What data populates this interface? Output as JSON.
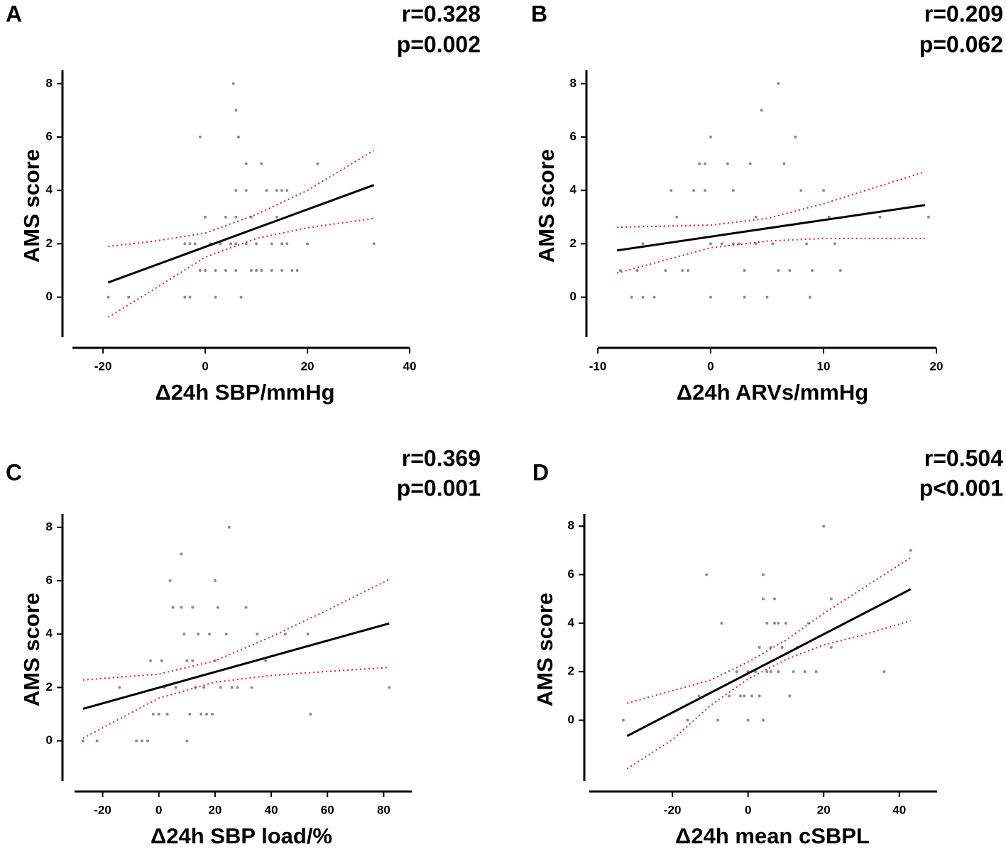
{
  "chart_data": [
    {
      "type": "scatter",
      "panel": "A",
      "annotations": [
        "r=0.328",
        "p=0.002"
      ],
      "xlabel": "Δ24h SBP/mmHg",
      "ylabel": "AMS score",
      "xlim": [
        -26,
        40
      ],
      "ylim": [
        -1.5,
        8.5
      ],
      "xticks": [
        -20,
        0,
        20,
        40
      ],
      "yticks": [
        0,
        2,
        4,
        6,
        8
      ],
      "points": {
        "color": "#8c8c8c",
        "x": [
          -19,
          -15,
          -4,
          -3,
          2,
          7,
          -1,
          0,
          -2,
          -4,
          -3,
          1,
          3,
          5,
          6,
          8,
          10,
          13,
          15,
          16,
          20,
          -1,
          0,
          2,
          4,
          6,
          9,
          11,
          13,
          17,
          18,
          4,
          6,
          9,
          14,
          6,
          8,
          12,
          14,
          15,
          16,
          22,
          8,
          11,
          6,
          5.5,
          6.5,
          33,
          10,
          15
        ],
        "y": [
          0,
          0,
          0,
          0,
          0,
          0,
          6,
          3,
          2,
          2,
          2,
          2,
          2,
          2,
          2,
          2,
          2,
          2,
          2,
          2,
          2,
          1,
          1,
          1,
          1,
          1,
          1,
          1,
          1,
          1,
          1,
          3,
          3,
          3,
          3,
          4,
          4,
          4,
          4,
          4,
          4,
          5,
          5,
          5,
          7,
          8,
          6,
          2,
          1,
          1
        ]
      },
      "fit": {
        "color": "#000000",
        "x": [
          -19,
          33
        ],
        "y": [
          0.55,
          4.2
        ]
      },
      "ci_upper": {
        "color": "#e02020",
        "x": [
          -19,
          -10,
          0,
          10,
          20,
          33
        ],
        "y": [
          1.9,
          2.1,
          2.4,
          3.1,
          4.0,
          5.5
        ]
      },
      "ci_lower": {
        "color": "#e02020",
        "x": [
          -19,
          -10,
          0,
          10,
          20,
          33
        ],
        "y": [
          -0.75,
          0.3,
          1.5,
          2.2,
          2.6,
          2.95
        ]
      }
    },
    {
      "type": "scatter",
      "panel": "B",
      "annotations": [
        "r=0.209",
        "p=0.062"
      ],
      "xlabel": "Δ24h ARVs/mmHg",
      "ylabel": "AMS score",
      "xlim": [
        -10,
        20
      ],
      "ylim": [
        -1.5,
        8.5
      ],
      "xticks": [
        -10,
        0,
        10,
        20
      ],
      "yticks": [
        0,
        2,
        4,
        6,
        8
      ],
      "points": {
        "color": "#8c8c8c",
        "x": [
          -8,
          -7,
          -6,
          -5,
          -6.5,
          -6,
          -4,
          -3.5,
          -3,
          -2.5,
          -2,
          -1.5,
          -1,
          -0.5,
          0,
          0,
          0,
          -0.5,
          1,
          1.5,
          2,
          2.5,
          3,
          3,
          3.5,
          4,
          4,
          4.5,
          5,
          5.5,
          6,
          6.5,
          7,
          7.5,
          8,
          8.5,
          8.8,
          9,
          10,
          10.5,
          11,
          11.5,
          15,
          19.3,
          6,
          2
        ],
        "y": [
          1,
          0,
          0,
          0,
          1,
          2,
          1,
          4,
          3,
          1,
          1,
          4,
          5,
          4,
          2,
          0,
          6,
          5,
          2,
          5,
          4,
          2,
          1,
          0,
          5,
          2,
          3,
          7,
          0,
          2,
          8,
          5,
          1,
          6,
          4,
          2,
          0,
          1,
          4,
          3,
          2,
          1,
          3,
          3,
          1,
          2
        ]
      },
      "fit": {
        "color": "#000000",
        "x": [
          -8.3,
          19
        ],
        "y": [
          1.75,
          3.45
        ]
      },
      "ci_upper": {
        "color": "#e02020",
        "x": [
          -8.3,
          0,
          5,
          10,
          19
        ],
        "y": [
          2.62,
          2.7,
          2.95,
          3.5,
          4.7
        ]
      },
      "ci_lower": {
        "color": "#e02020",
        "x": [
          -8.3,
          0,
          5,
          10,
          19
        ],
        "y": [
          0.9,
          1.85,
          2.1,
          2.2,
          2.2
        ]
      }
    },
    {
      "type": "scatter",
      "panel": "C",
      "annotations": [
        "r=0.369",
        "p=0.001"
      ],
      "xlabel": "Δ24h SBP load/%",
      "ylabel": "AMS score",
      "xlim": [
        -30,
        90
      ],
      "ylim": [
        -1.5,
        8.5
      ],
      "xticks": [
        -20,
        0,
        20,
        40,
        60,
        80
      ],
      "yticks": [
        0,
        2,
        4,
        6,
        8
      ],
      "points": {
        "color": "#8c8c8c",
        "x": [
          -27,
          -22,
          -14,
          -8,
          -6,
          -4,
          -2,
          -3,
          0,
          1,
          2,
          3,
          4,
          5,
          6,
          8,
          8,
          9,
          10,
          11,
          12,
          12,
          13,
          14,
          15,
          16,
          18,
          20,
          20,
          21,
          22,
          24,
          25,
          26,
          28,
          31,
          33,
          35,
          38,
          45,
          53,
          54,
          82,
          17,
          19,
          10
        ],
        "y": [
          0,
          0,
          2,
          0,
          0,
          0,
          1,
          3,
          1,
          3,
          2,
          1,
          6,
          5,
          2,
          5,
          7,
          4,
          0,
          1,
          3,
          5,
          2,
          4,
          1,
          2,
          4,
          6,
          3,
          5,
          2,
          4,
          8,
          2,
          2,
          5,
          2,
          4,
          3,
          4,
          4,
          1,
          2,
          1,
          1,
          3
        ]
      },
      "fit": {
        "color": "#000000",
        "x": [
          -27,
          82
        ],
        "y": [
          1.2,
          4.4
        ]
      },
      "ci_upper": {
        "color": "#e02020",
        "x": [
          -27,
          0,
          20,
          40,
          60,
          82
        ],
        "y": [
          2.28,
          2.5,
          3.0,
          3.9,
          4.9,
          6.05
        ]
      },
      "ci_lower": {
        "color": "#e02020",
        "x": [
          -27,
          0,
          20,
          40,
          60,
          82
        ],
        "y": [
          0.1,
          1.6,
          2.2,
          2.45,
          2.6,
          2.75
        ]
      }
    },
    {
      "type": "scatter",
      "panel": "D",
      "annotations": [
        "r=0.504",
        "p<0.001"
      ],
      "xlabel": "Δ24h mean cSBPL",
      "ylabel": "AMS score",
      "xlim": [
        -42,
        50
      ],
      "ylim": [
        -2.5,
        8.5
      ],
      "xticks": [
        -20,
        0,
        20,
        40
      ],
      "yticks": [
        0,
        2,
        4,
        6,
        8
      ],
      "points": {
        "color": "#8c8c8c",
        "x": [
          -33,
          -16,
          -13,
          -11,
          -7,
          -8,
          -5,
          -3,
          -2,
          0,
          0,
          1,
          2,
          3,
          3,
          4,
          4,
          5,
          5,
          6,
          6,
          7,
          7,
          8,
          8,
          9,
          10,
          11,
          12,
          13,
          15,
          16,
          18,
          20,
          22,
          22,
          36,
          43,
          4,
          -1
        ],
        "y": [
          0,
          0,
          1,
          6,
          4,
          0,
          1,
          2,
          1,
          0,
          2,
          1,
          2,
          1,
          3,
          5,
          6,
          2,
          4,
          2,
          3,
          4,
          5,
          4,
          2,
          3,
          4,
          1,
          2,
          3,
          2,
          4,
          2,
          8,
          5,
          3,
          2,
          7,
          0,
          1
        ]
      },
      "fit": {
        "color": "#000000",
        "x": [
          -32,
          43
        ],
        "y": [
          -0.65,
          5.4
        ]
      },
      "ci_upper": {
        "color": "#e02020",
        "x": [
          -32,
          -10,
          0,
          10,
          20,
          30,
          43
        ],
        "y": [
          0.7,
          1.65,
          2.4,
          3.3,
          4.4,
          5.4,
          6.7
        ]
      },
      "ci_lower": {
        "color": "#e02020",
        "x": [
          -32,
          -20,
          -10,
          0,
          10,
          20,
          30,
          43
        ],
        "y": [
          -2.0,
          -0.8,
          0.6,
          1.7,
          2.5,
          3.1,
          3.5,
          4.1
        ]
      }
    }
  ]
}
